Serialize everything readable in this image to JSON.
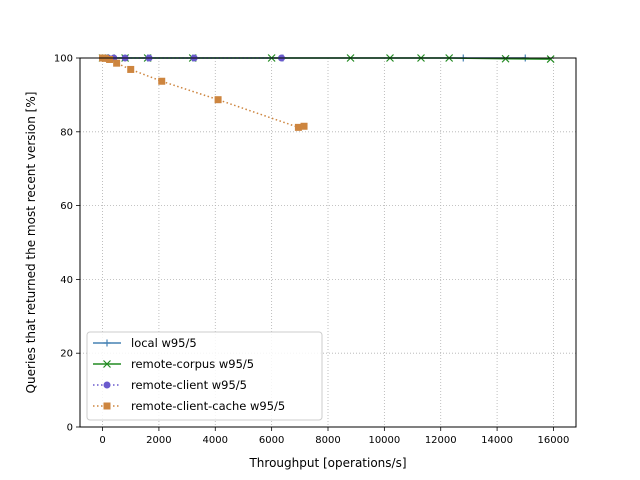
{
  "chart_data": {
    "type": "line",
    "title": "",
    "xlabel": "Throughput [operations/s]",
    "ylabel": "Queries that returned the most recent version [%]",
    "xlim": [
      -800,
      16800
    ],
    "ylim": [
      0,
      100
    ],
    "xticks": [
      0,
      2000,
      4000,
      6000,
      8000,
      10000,
      12000,
      14000,
      16000
    ],
    "yticks": [
      0,
      20,
      40,
      60,
      80,
      100
    ],
    "xtick_labels": [
      "0",
      "2000",
      "4000",
      "6000",
      "8000",
      "10000",
      "12000",
      "14000",
      "16000"
    ],
    "ytick_labels": [
      "0",
      "20",
      "40",
      "60",
      "80",
      "100"
    ],
    "grid": true,
    "legend_position": "lower-left",
    "series": [
      {
        "name": "local w95/5",
        "color": "#4682b4",
        "marker": "plus",
        "line_style": "solid",
        "x": [
          0,
          50,
          100,
          200,
          400,
          800,
          1600,
          3200,
          6400,
          12800,
          15000
        ],
        "y": [
          100,
          100,
          100,
          100,
          100,
          100,
          100,
          100,
          100,
          100,
          100
        ]
      },
      {
        "name": "remote-corpus w95/5",
        "color": "#228b22",
        "marker": "x",
        "line_style": "solid",
        "x": [
          0,
          100,
          300,
          800,
          1600,
          3200,
          6000,
          8800,
          10200,
          11300,
          12300,
          14300,
          15900
        ],
        "y": [
          100,
          100,
          100,
          100,
          100,
          100,
          100,
          100,
          100,
          100,
          100,
          99.8,
          99.7
        ]
      },
      {
        "name": "remote-client w95/5",
        "color": "#6a5acd",
        "marker": "circle",
        "line_style": "dotted",
        "x": [
          0,
          100,
          200,
          400,
          800,
          1650,
          3250,
          6350
        ],
        "y": [
          100,
          100,
          100,
          100,
          100,
          100,
          100,
          100
        ]
      },
      {
        "name": "remote-client-cache w95/5",
        "color": "#cd853f",
        "marker": "square",
        "line_style": "dotted",
        "x": [
          0,
          100,
          250,
          500,
          1000,
          2100,
          4100,
          6950,
          7150
        ],
        "y": [
          100,
          99.9,
          99.6,
          98.6,
          96.9,
          93.7,
          88.7,
          81.2,
          81.5
        ]
      }
    ]
  }
}
